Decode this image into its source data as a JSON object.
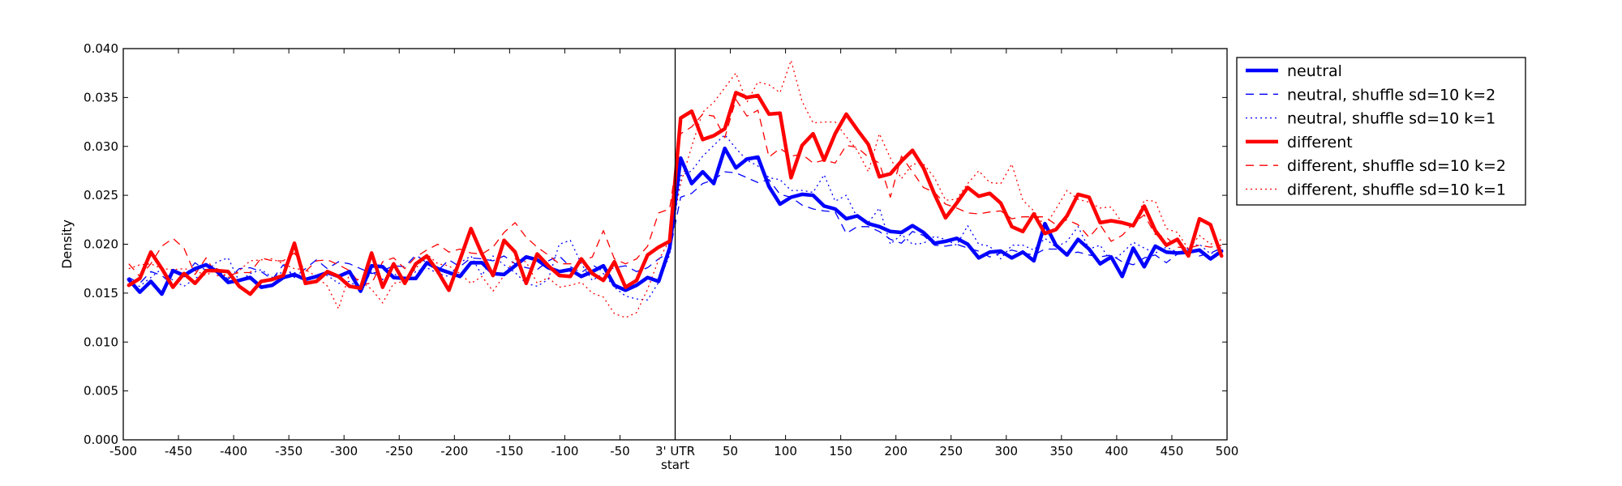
{
  "chart_data": {
    "type": "line",
    "title": "",
    "xlabel": "",
    "ylabel": "Density",
    "xlim": [
      -500,
      500
    ],
    "ylim": [
      0,
      0.04
    ],
    "grid": false,
    "legend_position": "outside-right-top",
    "x_ticks": [
      -500,
      -450,
      -400,
      -350,
      -300,
      -250,
      -200,
      -150,
      -100,
      -50,
      0,
      50,
      100,
      150,
      200,
      250,
      300,
      350,
      400,
      450,
      500
    ],
    "x_tick_labels": [
      "-500",
      "-450",
      "-400",
      "-350",
      "-300",
      "-250",
      "-200",
      "-150",
      "-100",
      "-50",
      "3' UTR",
      "50",
      "100",
      "150",
      "200",
      "250",
      "300",
      "350",
      "400",
      "450",
      "500"
    ],
    "x_tick_sublabel": "start",
    "y_ticks": [
      0,
      0.005,
      0.01,
      0.015,
      0.02,
      0.025,
      0.03,
      0.035,
      0.04
    ],
    "y_tick_labels": [
      "0.000",
      "0.005",
      "0.010",
      "0.015",
      "0.020",
      "0.025",
      "0.030",
      "0.035",
      "0.040"
    ],
    "vline_x": 0,
    "x": [
      -495,
      -485,
      -475,
      -465,
      -455,
      -445,
      -435,
      -425,
      -415,
      -405,
      -395,
      -385,
      -375,
      -365,
      -355,
      -345,
      -335,
      -325,
      -315,
      -305,
      -295,
      -285,
      -275,
      -265,
      -255,
      -245,
      -235,
      -225,
      -215,
      -205,
      -195,
      -185,
      -175,
      -165,
      -155,
      -145,
      -135,
      -125,
      -115,
      -105,
      -95,
      -85,
      -75,
      -65,
      -55,
      -45,
      -35,
      -25,
      -15,
      -5,
      5,
      15,
      25,
      35,
      45,
      55,
      65,
      75,
      85,
      95,
      105,
      115,
      125,
      135,
      145,
      155,
      165,
      175,
      185,
      195,
      205,
      215,
      225,
      235,
      245,
      255,
      265,
      275,
      285,
      295,
      305,
      315,
      325,
      335,
      345,
      355,
      365,
      375,
      385,
      395,
      405,
      415,
      425,
      435,
      445,
      455,
      465,
      475,
      485,
      495
    ],
    "series": [
      {
        "name": "neutral",
        "color": "#0000ff",
        "dash": "solid",
        "width": 4.5,
        "values": [
          0.0164,
          0.0151,
          0.0162,
          0.0149,
          0.0173,
          0.0168,
          0.0175,
          0.0179,
          0.0172,
          0.0161,
          0.0163,
          0.0166,
          0.0156,
          0.0158,
          0.0166,
          0.0169,
          0.0164,
          0.0167,
          0.0171,
          0.0167,
          0.0172,
          0.0152,
          0.0178,
          0.0177,
          0.0166,
          0.0165,
          0.0165,
          0.0181,
          0.0175,
          0.0171,
          0.0167,
          0.0181,
          0.0181,
          0.017,
          0.0169,
          0.0178,
          0.0187,
          0.0184,
          0.0176,
          0.0172,
          0.0174,
          0.0167,
          0.0172,
          0.0178,
          0.0158,
          0.0153,
          0.0158,
          0.0166,
          0.0162,
          0.0196,
          0.0288,
          0.0262,
          0.0274,
          0.0262,
          0.0298,
          0.0278,
          0.0287,
          0.0289,
          0.0259,
          0.0241,
          0.0248,
          0.0251,
          0.025,
          0.0239,
          0.0236,
          0.0226,
          0.0229,
          0.0221,
          0.0218,
          0.0213,
          0.0212,
          0.0219,
          0.0212,
          0.0201,
          0.0203,
          0.0206,
          0.02,
          0.0186,
          0.0192,
          0.0193,
          0.0186,
          0.0192,
          0.0183,
          0.0221,
          0.0199,
          0.0189,
          0.0205,
          0.0195,
          0.018,
          0.0187,
          0.0167,
          0.0196,
          0.0177,
          0.0198,
          0.0192,
          0.0191,
          0.0192,
          0.0194,
          0.0185,
          0.0193
        ]
      },
      {
        "name": "neutral, shuffle sd=10 k=2",
        "color": "#0000ff",
        "dash": "dashed",
        "width": 1.3,
        "values": [
          0.0166,
          0.016,
          0.0172,
          0.0168,
          0.0158,
          0.0167,
          0.0181,
          0.0173,
          0.0175,
          0.0164,
          0.0175,
          0.0176,
          0.0172,
          0.0164,
          0.0179,
          0.0166,
          0.0175,
          0.0184,
          0.0175,
          0.0182,
          0.018,
          0.0175,
          0.017,
          0.0173,
          0.0178,
          0.0177,
          0.0189,
          0.0181,
          0.0173,
          0.0184,
          0.0177,
          0.0186,
          0.0185,
          0.0183,
          0.0188,
          0.018,
          0.0176,
          0.0174,
          0.0183,
          0.0188,
          0.0177,
          0.0171,
          0.0179,
          0.0172,
          0.0176,
          0.0178,
          0.0172,
          0.0176,
          0.0185,
          0.0192,
          0.0248,
          0.0252,
          0.0262,
          0.0266,
          0.0274,
          0.0273,
          0.0268,
          0.0263,
          0.0266,
          0.0251,
          0.0248,
          0.024,
          0.0236,
          0.0234,
          0.0233,
          0.0211,
          0.0218,
          0.0218,
          0.0213,
          0.0205,
          0.0201,
          0.0213,
          0.0209,
          0.0199,
          0.0198,
          0.02,
          0.0196,
          0.0193,
          0.0187,
          0.0191,
          0.0194,
          0.0191,
          0.0189,
          0.0195,
          0.0195,
          0.019,
          0.0192,
          0.0189,
          0.0187,
          0.0189,
          0.0182,
          0.0179,
          0.0186,
          0.0189,
          0.0181,
          0.019,
          0.0195,
          0.0188,
          0.0191,
          0.0196
        ]
      },
      {
        "name": "neutral, shuffle sd=10 k=1",
        "color": "#0000ff",
        "dash": "dotted",
        "width": 1.3,
        "values": [
          0.0159,
          0.0157,
          0.0166,
          0.0175,
          0.0163,
          0.0157,
          0.0165,
          0.0172,
          0.0182,
          0.0186,
          0.0162,
          0.017,
          0.0174,
          0.0166,
          0.0172,
          0.0171,
          0.0165,
          0.0168,
          0.0168,
          0.016,
          0.0162,
          0.0154,
          0.0172,
          0.0164,
          0.017,
          0.0163,
          0.0172,
          0.0176,
          0.017,
          0.0167,
          0.0181,
          0.0188,
          0.0168,
          0.0188,
          0.0179,
          0.0171,
          0.016,
          0.0157,
          0.0164,
          0.02,
          0.0204,
          0.018,
          0.0163,
          0.017,
          0.0156,
          0.0147,
          0.0144,
          0.0143,
          0.0161,
          0.0189,
          0.027,
          0.0275,
          0.029,
          0.0301,
          0.0312,
          0.0298,
          0.0286,
          0.028,
          0.0268,
          0.0266,
          0.0255,
          0.0255,
          0.0253,
          0.0271,
          0.0244,
          0.025,
          0.0227,
          0.0222,
          0.0237,
          0.02,
          0.021,
          0.02,
          0.0201,
          0.0208,
          0.0205,
          0.0199,
          0.0219,
          0.02,
          0.0198,
          0.0185,
          0.0199,
          0.0199,
          0.0194,
          0.0206,
          0.0197,
          0.0203,
          0.0218,
          0.0195,
          0.0199,
          0.0182,
          0.0191,
          0.0202,
          0.0196,
          0.0191,
          0.0197,
          0.0192,
          0.0196,
          0.02,
          0.019,
          0.0197
        ]
      },
      {
        "name": "different",
        "color": "#ff0000",
        "dash": "solid",
        "width": 4.5,
        "values": [
          0.0158,
          0.0165,
          0.0192,
          0.0175,
          0.0156,
          0.017,
          0.016,
          0.0173,
          0.0173,
          0.0172,
          0.0157,
          0.0149,
          0.0162,
          0.0164,
          0.0168,
          0.0201,
          0.016,
          0.0162,
          0.0172,
          0.0167,
          0.0157,
          0.0155,
          0.0191,
          0.0156,
          0.018,
          0.016,
          0.018,
          0.0188,
          0.0172,
          0.0153,
          0.0184,
          0.0216,
          0.019,
          0.0168,
          0.0204,
          0.0192,
          0.016,
          0.019,
          0.0178,
          0.0168,
          0.0167,
          0.0185,
          0.017,
          0.0163,
          0.0182,
          0.0156,
          0.0163,
          0.0189,
          0.0197,
          0.0203,
          0.0329,
          0.0336,
          0.0307,
          0.0311,
          0.0318,
          0.0355,
          0.035,
          0.0352,
          0.0333,
          0.0334,
          0.0268,
          0.0301,
          0.0313,
          0.0286,
          0.0313,
          0.0333,
          0.0317,
          0.0302,
          0.0269,
          0.0272,
          0.0285,
          0.0296,
          0.0278,
          0.0251,
          0.0227,
          0.0242,
          0.0258,
          0.0249,
          0.0252,
          0.0242,
          0.0218,
          0.0213,
          0.0231,
          0.0211,
          0.0215,
          0.0229,
          0.0251,
          0.0248,
          0.0222,
          0.0224,
          0.0222,
          0.0219,
          0.0239,
          0.0214,
          0.0199,
          0.0205,
          0.0188,
          0.0226,
          0.022,
          0.0188
        ]
      },
      {
        "name": "different, shuffle sd=10 k=2",
        "color": "#ff0000",
        "dash": "dashed",
        "width": 1.3,
        "values": [
          0.018,
          0.0167,
          0.018,
          0.0198,
          0.0206,
          0.0196,
          0.0169,
          0.0186,
          0.0168,
          0.0168,
          0.0171,
          0.0171,
          0.0186,
          0.0183,
          0.0183,
          0.0191,
          0.0172,
          0.0183,
          0.0184,
          0.0179,
          0.0173,
          0.0159,
          0.016,
          0.0182,
          0.0186,
          0.0175,
          0.0187,
          0.0194,
          0.02,
          0.0192,
          0.0195,
          0.0191,
          0.019,
          0.0197,
          0.0212,
          0.0222,
          0.0207,
          0.0197,
          0.0189,
          0.018,
          0.018,
          0.0182,
          0.0187,
          0.0214,
          0.0185,
          0.018,
          0.0185,
          0.0198,
          0.0232,
          0.0236,
          0.0313,
          0.032,
          0.0333,
          0.0331,
          0.0309,
          0.0348,
          0.0331,
          0.0337,
          0.0289,
          0.0298,
          0.029,
          0.0292,
          0.0283,
          0.0286,
          0.0283,
          0.0301,
          0.0299,
          0.0289,
          0.0283,
          0.0248,
          0.029,
          0.0274,
          0.0258,
          0.0253,
          0.0241,
          0.0237,
          0.0232,
          0.0231,
          0.0233,
          0.0234,
          0.0226,
          0.0228,
          0.0228,
          0.0228,
          0.022,
          0.0225,
          0.022,
          0.0207,
          0.022,
          0.0203,
          0.0209,
          0.0221,
          0.023,
          0.021,
          0.0207,
          0.0197,
          0.0196,
          0.0199,
          0.0197,
          0.0199
        ]
      },
      {
        "name": "different, shuffle sd=10 k=1",
        "color": "#ff0000",
        "dash": "dotted",
        "width": 1.3,
        "values": [
          0.0175,
          0.0179,
          0.018,
          0.0175,
          0.0174,
          0.0175,
          0.0173,
          0.0168,
          0.0175,
          0.0166,
          0.0173,
          0.0183,
          0.0184,
          0.0185,
          0.018,
          0.0175,
          0.0174,
          0.0167,
          0.0157,
          0.0134,
          0.017,
          0.0162,
          0.0154,
          0.014,
          0.016,
          0.0162,
          0.0175,
          0.019,
          0.018,
          0.0178,
          0.017,
          0.016,
          0.0167,
          0.0152,
          0.0168,
          0.0185,
          0.0182,
          0.016,
          0.0166,
          0.0156,
          0.0158,
          0.0161,
          0.015,
          0.0146,
          0.0129,
          0.0125,
          0.013,
          0.0154,
          0.0184,
          0.0204,
          0.0262,
          0.03,
          0.0335,
          0.0345,
          0.036,
          0.0375,
          0.0345,
          0.0366,
          0.0363,
          0.0355,
          0.0388,
          0.0346,
          0.0324,
          0.0325,
          0.0325,
          0.031,
          0.0296,
          0.0274,
          0.0313,
          0.0288,
          0.0267,
          0.0282,
          0.0282,
          0.0268,
          0.0245,
          0.0246,
          0.0262,
          0.0275,
          0.0263,
          0.0262,
          0.0282,
          0.0245,
          0.0234,
          0.0218,
          0.0236,
          0.0255,
          0.0246,
          0.0243,
          0.0237,
          0.0238,
          0.0222,
          0.0218,
          0.0245,
          0.0244,
          0.0216,
          0.0212,
          0.0195,
          0.0209,
          0.02,
          0.0205
        ]
      }
    ]
  }
}
